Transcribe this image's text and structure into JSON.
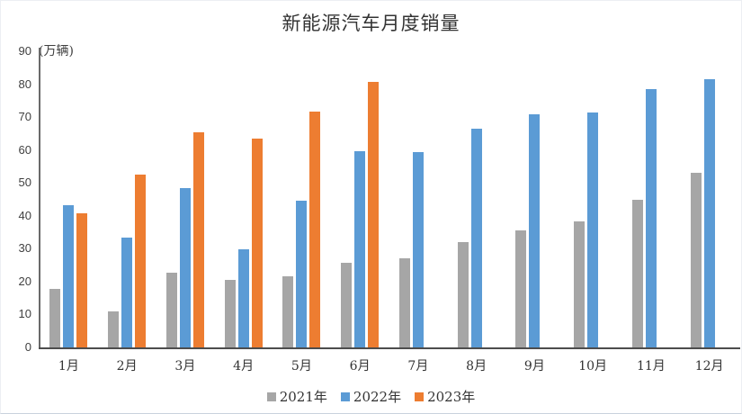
{
  "chart_data": {
    "type": "bar",
    "title": "新能源汽车月度销量",
    "unit_label": "(万辆)",
    "xlabel": "",
    "ylabel": "万辆",
    "ylim": [
      0,
      90
    ],
    "yticks": [
      0,
      10,
      20,
      30,
      40,
      50,
      60,
      70,
      80,
      90
    ],
    "grid": false,
    "legend_position": "bottom",
    "categories": [
      "1月",
      "2月",
      "3月",
      "4月",
      "5月",
      "6月",
      "7月",
      "8月",
      "9月",
      "10月",
      "11月",
      "12月"
    ],
    "series": [
      {
        "name": "2021年",
        "color": "#A6A6A6",
        "values": [
          17.9,
          11.0,
          22.6,
          20.6,
          21.7,
          25.6,
          27.1,
          32.1,
          35.7,
          38.3,
          45.0,
          53.1
        ]
      },
      {
        "name": "2022年",
        "color": "#5B9BD5",
        "values": [
          43.1,
          33.4,
          48.4,
          29.9,
          44.7,
          59.6,
          59.3,
          66.6,
          70.8,
          71.4,
          78.6,
          81.4
        ]
      },
      {
        "name": "2023年",
        "color": "#ED7D31",
        "values": [
          40.8,
          52.5,
          65.3,
          63.6,
          71.7,
          80.6,
          null,
          null,
          null,
          null,
          null,
          null
        ]
      }
    ]
  }
}
